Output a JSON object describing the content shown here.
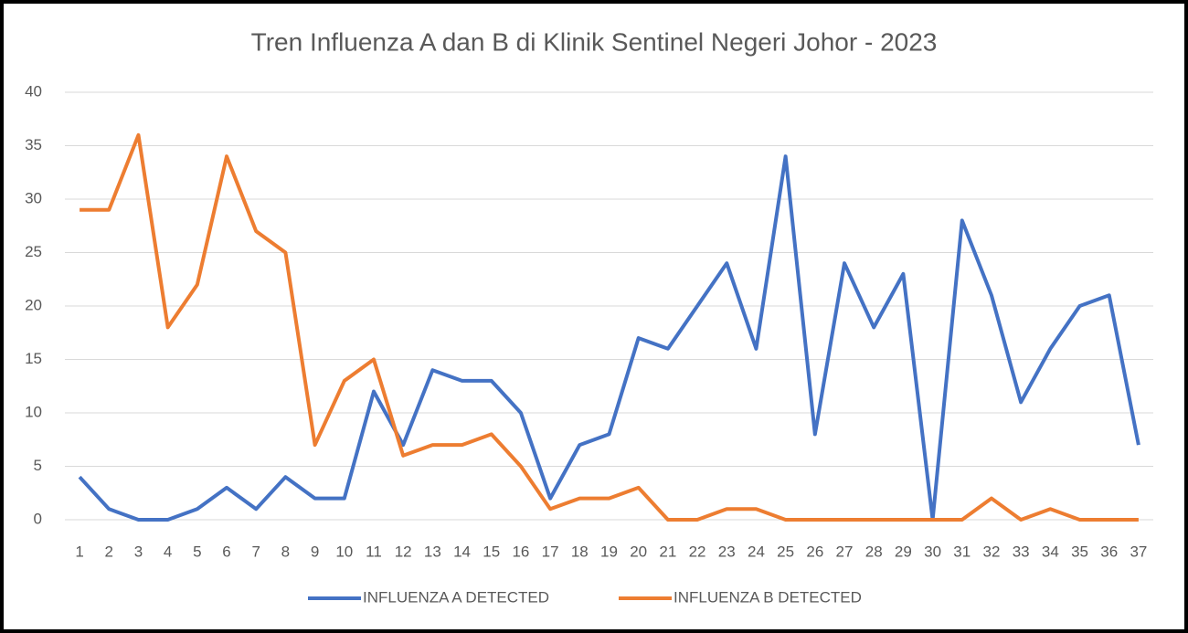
{
  "chart_data": {
    "type": "line",
    "title": "Tren Influenza A dan B di Klinik Sentinel Negeri Johor - 2023",
    "categories": [
      "1",
      "2",
      "3",
      "4",
      "5",
      "6",
      "7",
      "8",
      "9",
      "10",
      "11",
      "12",
      "13",
      "14",
      "15",
      "16",
      "17",
      "18",
      "19",
      "20",
      "21",
      "22",
      "23",
      "24",
      "25",
      "26",
      "27",
      "28",
      "29",
      "30",
      "31",
      "32",
      "33",
      "34",
      "35",
      "36",
      "37"
    ],
    "series": [
      {
        "name": "INFLUENZA A DETECTED",
        "color": "#4472c4",
        "values": [
          4,
          1,
          0,
          0,
          1,
          3,
          1,
          4,
          2,
          2,
          12,
          7,
          14,
          13,
          13,
          10,
          2,
          7,
          8,
          17,
          16,
          20,
          24,
          16,
          34,
          8,
          24,
          18,
          23,
          0,
          28,
          21,
          11,
          16,
          20,
          21,
          7
        ]
      },
      {
        "name": "INFLUENZA B DETECTED",
        "color": "#ed7d31",
        "values": [
          29,
          29,
          36,
          18,
          22,
          34,
          27,
          25,
          7,
          13,
          15,
          6,
          7,
          7,
          8,
          5,
          1,
          2,
          2,
          3,
          0,
          0,
          1,
          1,
          0,
          0,
          0,
          0,
          0,
          0,
          0,
          2,
          0,
          1,
          0,
          0,
          0
        ]
      }
    ],
    "ylim": [
      0,
      40
    ],
    "yticks": [
      0,
      5,
      10,
      15,
      20,
      25,
      30,
      35,
      40
    ],
    "grid": true,
    "legend": "bottom"
  }
}
